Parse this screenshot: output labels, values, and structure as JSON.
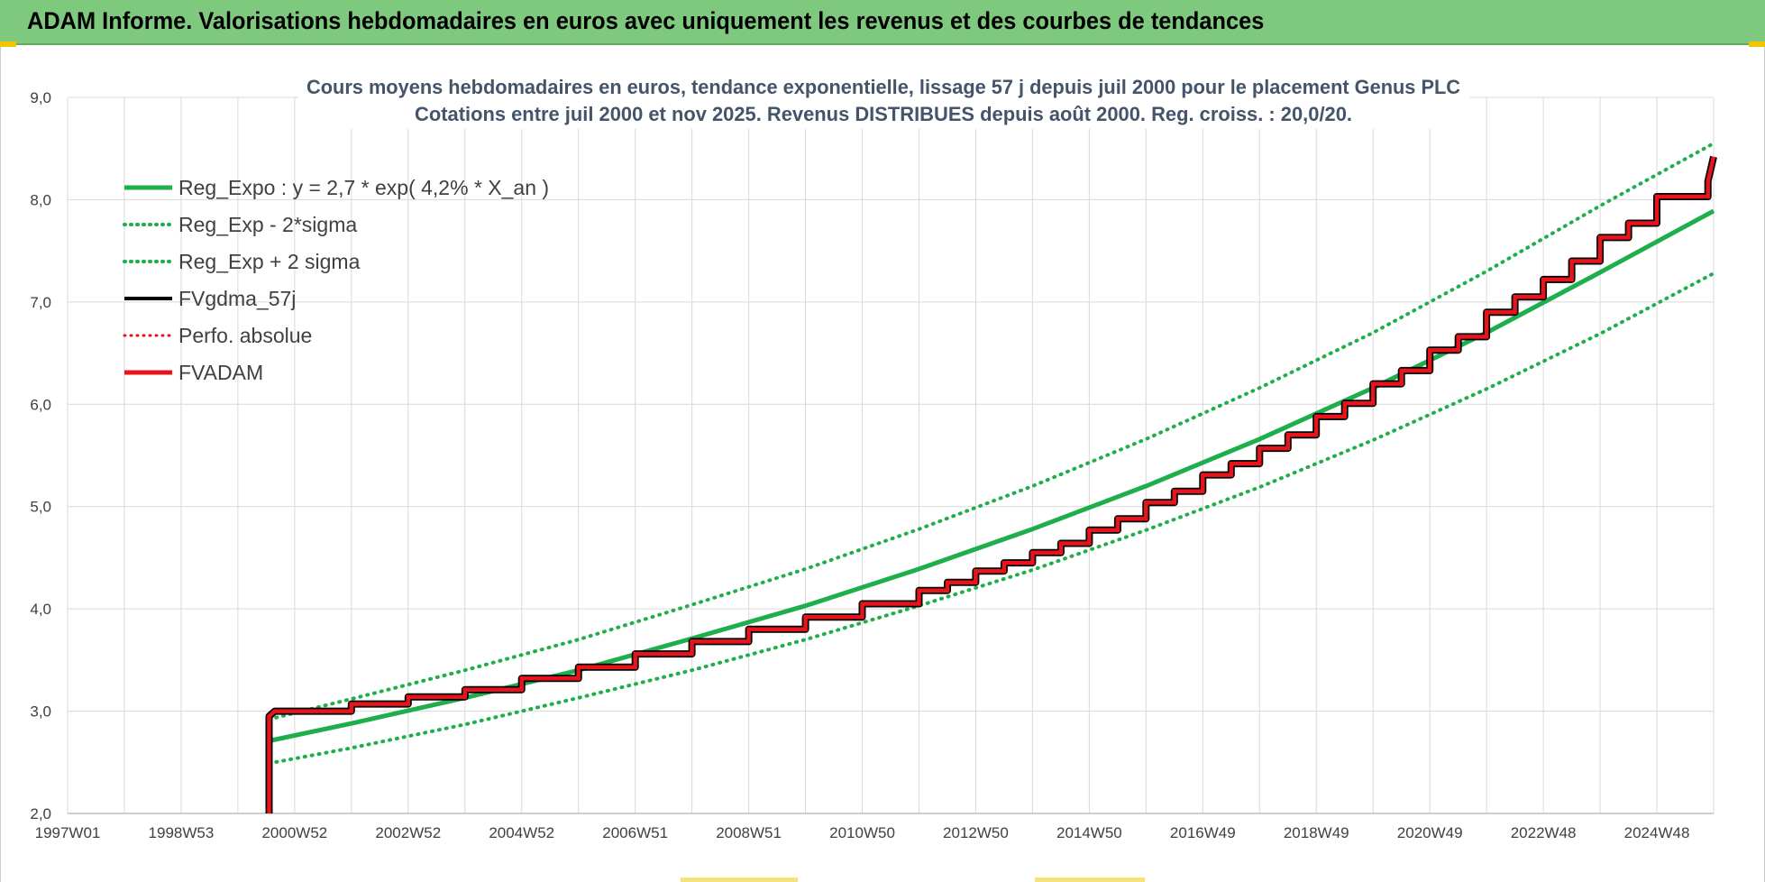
{
  "banner": {
    "title": "ADAM Informe. Valorisations hebdomadaires en euros avec uniquement les revenus et des courbes de tendances"
  },
  "colors": {
    "banner_bg": "#7fc97f",
    "trend_green": "#1fae4c",
    "fv_black": "#000000",
    "fvadam_red": "#e8141b",
    "grid": "#d9d9d9"
  },
  "chart_data": {
    "type": "line",
    "title": "Cours moyens hebdomadaires en euros, tendance exponentielle, lissage 57 j depuis juil 2000 pour le placement Genus PLC",
    "subtitle": "Cotations entre juil 2000 et nov 2025. Revenus DISTRIBUES depuis août 2000. Reg. croiss. : 20,0/20.",
    "ylim": [
      2.0,
      9.0
    ],
    "yticks": [
      "2,0",
      "3,0",
      "4,0",
      "5,0",
      "6,0",
      "7,0",
      "8,0",
      "9,0"
    ],
    "xlim": [
      1997.0,
      2026.0
    ],
    "xticks": [
      {
        "x": 1997.0,
        "label": "1997W01"
      },
      {
        "x": 1999.0,
        "label": "1998W53"
      },
      {
        "x": 2001.0,
        "label": "2000W52"
      },
      {
        "x": 2003.0,
        "label": "2002W52"
      },
      {
        "x": 2005.0,
        "label": "2004W52"
      },
      {
        "x": 2007.0,
        "label": "2006W51"
      },
      {
        "x": 2009.0,
        "label": "2008W51"
      },
      {
        "x": 2011.0,
        "label": "2010W50"
      },
      {
        "x": 2013.0,
        "label": "2012W50"
      },
      {
        "x": 2015.0,
        "label": "2014W50"
      },
      {
        "x": 2017.0,
        "label": "2016W49"
      },
      {
        "x": 2019.0,
        "label": "2018W49"
      },
      {
        "x": 2021.0,
        "label": "2020W49"
      },
      {
        "x": 2023.0,
        "label": "2022W48"
      },
      {
        "x": 2025.0,
        "label": "2024W48"
      }
    ],
    "grid": true,
    "legend_position": "top-left",
    "legend": [
      {
        "name": "Reg_Expo : y = 2,7 * exp( 4,2% *  X_an )",
        "color": "#1fae4c",
        "style": "solid",
        "width": 5
      },
      {
        "name": "Reg_Exp - 2*sigma",
        "color": "#1fae4c",
        "style": "dotted",
        "width": 4
      },
      {
        "name": "Reg_Exp + 2 sigma",
        "color": "#1fae4c",
        "style": "dotted",
        "width": 4
      },
      {
        "name": "FVgdma_57j",
        "color": "#000000",
        "style": "solid",
        "width": 4
      },
      {
        "name": "Perfo. absolue",
        "color": "#e8141b",
        "style": "dotted",
        "width": 3
      },
      {
        "name": "FVADAM",
        "color": "#e8141b",
        "style": "solid",
        "width": 5
      }
    ],
    "series": [
      {
        "name": "Reg_Expo : y = 2,7 * exp( 4,2% *  X_an )",
        "x": [
          2000.55,
          2002,
          2004,
          2006,
          2008,
          2010,
          2012,
          2014,
          2016,
          2018,
          2020,
          2022,
          2024,
          2026
        ],
        "y": [
          2.71,
          2.88,
          3.13,
          3.4,
          3.71,
          4.03,
          4.39,
          4.78,
          5.2,
          5.66,
          6.16,
          6.7,
          7.29,
          7.89
        ]
      },
      {
        "name": "Reg_Exp - 2*sigma",
        "x": [
          2000.55,
          2002,
          2004,
          2006,
          2008,
          2010,
          2012,
          2014,
          2016,
          2018,
          2020,
          2022,
          2024,
          2026
        ],
        "y": [
          2.49,
          2.64,
          2.87,
          3.13,
          3.4,
          3.7,
          4.03,
          4.38,
          4.77,
          5.19,
          5.65,
          6.15,
          6.69,
          7.28
        ]
      },
      {
        "name": "Reg_Exp + 2 sigma",
        "x": [
          2000.55,
          2002,
          2004,
          2006,
          2008,
          2010,
          2012,
          2014,
          2016,
          2018,
          2020,
          2022,
          2024,
          2026
        ],
        "y": [
          2.92,
          3.12,
          3.4,
          3.7,
          4.04,
          4.39,
          4.78,
          5.2,
          5.66,
          6.16,
          6.7,
          7.3,
          7.94,
          8.55
        ]
      },
      {
        "name": "FVADAM",
        "x": [
          2000.55,
          2000.55,
          2000.65,
          2001.0,
          2002.0,
          2002.0,
          2003.0,
          2003.0,
          2004.0,
          2004.0,
          2005.0,
          2005.0,
          2006.0,
          2006.0,
          2007.0,
          2007.0,
          2008.0,
          2008.0,
          2009.0,
          2009.0,
          2010.0,
          2010.0,
          2011.0,
          2011.0,
          2012.0,
          2012.0,
          2012.5,
          2012.5,
          2013.0,
          2013.0,
          2013.5,
          2013.5,
          2014.0,
          2014.0,
          2014.5,
          2014.5,
          2015.0,
          2015.0,
          2015.5,
          2015.5,
          2016.0,
          2016.0,
          2016.5,
          2016.5,
          2017.0,
          2017.0,
          2017.5,
          2017.5,
          2018.0,
          2018.0,
          2018.5,
          2018.5,
          2019.0,
          2019.0,
          2019.5,
          2019.5,
          2020.0,
          2020.0,
          2020.5,
          2020.5,
          2021.0,
          2021.0,
          2021.5,
          2021.5,
          2022.0,
          2022.0,
          2022.5,
          2022.5,
          2023.0,
          2023.0,
          2023.5,
          2023.5,
          2024.0,
          2024.0,
          2024.5,
          2024.5,
          2025.0,
          2025.0,
          2025.9,
          2025.9,
          2026.0
        ],
        "y": [
          2.0,
          2.95,
          3.0,
          3.0,
          3.0,
          3.07,
          3.07,
          3.14,
          3.14,
          3.21,
          3.21,
          3.32,
          3.32,
          3.43,
          3.43,
          3.56,
          3.56,
          3.68,
          3.68,
          3.8,
          3.8,
          3.92,
          3.92,
          4.05,
          4.05,
          4.18,
          4.18,
          4.26,
          4.26,
          4.37,
          4.37,
          4.45,
          4.45,
          4.55,
          4.55,
          4.64,
          4.64,
          4.77,
          4.77,
          4.88,
          4.88,
          5.04,
          5.04,
          5.15,
          5.15,
          5.31,
          5.31,
          5.42,
          5.42,
          5.57,
          5.57,
          5.7,
          5.7,
          5.88,
          5.88,
          6.01,
          6.01,
          6.2,
          6.2,
          6.33,
          6.33,
          6.53,
          6.53,
          6.66,
          6.66,
          6.9,
          6.9,
          7.05,
          7.05,
          7.22,
          7.22,
          7.4,
          7.4,
          7.63,
          7.63,
          7.77,
          7.77,
          8.03,
          8.03,
          8.18,
          8.42
        ]
      }
    ]
  }
}
